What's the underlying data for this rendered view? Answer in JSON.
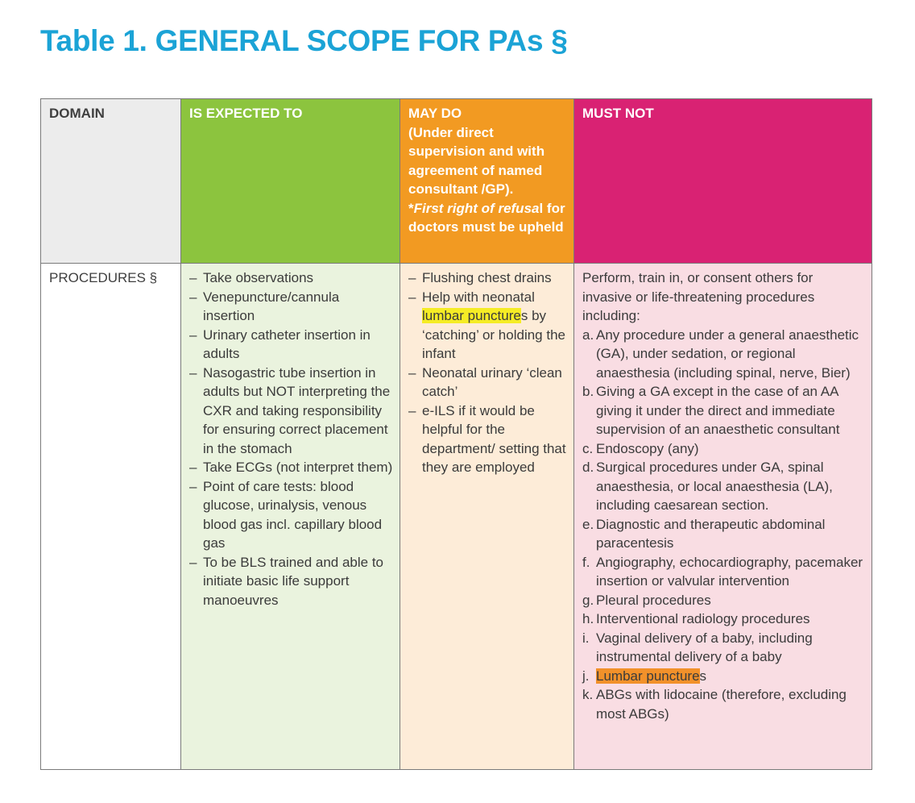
{
  "title": "Table 1. GENERAL SCOPE FOR PAs §",
  "headers": {
    "domain": "DOMAIN",
    "expected": "IS EXPECTED TO",
    "maydo": {
      "line1": "MAY DO",
      "line2": "(Under direct supervision and with agreement of named consultant /GP).",
      "star": "*",
      "italic": "First right of refusa",
      "rest": "l for doctors must be upheld"
    },
    "mustnot": "MUST NOT"
  },
  "row": {
    "domain": "PROCEDURES §",
    "expected": [
      "Take observations",
      "Venepuncture/cannula insertion",
      "Urinary catheter insertion in adults",
      "Nasogastric tube insertion in adults but NOT interpreting the CXR and taking responsibility for ensuring correct placement in the stomach",
      "Take ECGs (not interpret them)",
      "Point of care tests: blood glucose, urinalysis, venous blood gas incl. capillary blood gas",
      "To be BLS trained and able to initiate basic life support manoeuvres"
    ],
    "maydo": {
      "item1": "Flushing chest drains",
      "item2_pre": "Help with neonatal ",
      "item2_highlight": "lumbar puncture",
      "item2_post": "s by ‘catching’ or holding the infant",
      "item3": "Neonatal urinary ‘clean catch’",
      "item4": "e-ILS if it would be helpful for the department/ setting that they are employed"
    },
    "mustnot": {
      "intro": "Perform, train in, or consent others for invasive or life-threatening procedures including:",
      "items": [
        {
          "marker": "a.",
          "text": "Any procedure under a general anaesthetic (GA), under sedation, or regional anaesthesia (including spinal, nerve, Bier)"
        },
        {
          "marker": "b.",
          "text": "Giving a GA except in the case of an AA giving it under the direct and immediate supervision of an anaesthetic consultant"
        },
        {
          "marker": "c.",
          "text": "Endoscopy (any)"
        },
        {
          "marker": "d.",
          "text": "Surgical procedures under GA, spinal anaesthesia, or local anaesthesia (LA), including caesarean section."
        },
        {
          "marker": "e.",
          "text": "Diagnostic and therapeutic abdominal paracentesis"
        },
        {
          "marker": "f.",
          "text": "Angiography, echocardiography, pacemaker insertion or valvular intervention"
        },
        {
          "marker": "g.",
          "text": "Pleural procedures"
        },
        {
          "marker": "h.",
          "text": "Interventional radiology procedures"
        },
        {
          "marker": "i.",
          "text": "Vaginal delivery of a baby, including instrumental delivery of a baby"
        },
        {
          "marker": "j.",
          "text_highlight": "Lumbar puncture",
          "text_post": "s"
        },
        {
          "marker": "k.",
          "text": "ABGs with lidocaine (therefore, excluding most ABGs)"
        }
      ]
    }
  },
  "colors": {
    "title": "#1ba3d6",
    "domain_header": "#ececec",
    "expected_header": "#8cc43e",
    "maydo_header": "#f29a22",
    "mustnot_header": "#d92273",
    "expected_body": "#eaf3de",
    "maydo_body": "#fdecd8",
    "mustnot_body": "#f9dde3",
    "highlight_yellow": "#f5ec25",
    "highlight_orange": "#f2912a"
  }
}
